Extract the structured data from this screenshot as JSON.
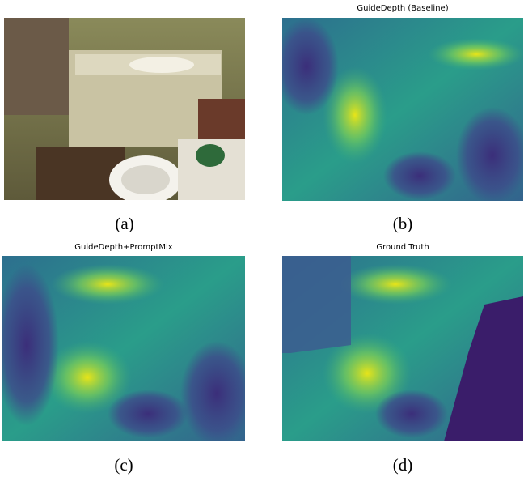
{
  "panels": [
    {
      "caption": "(a)"
    },
    {
      "title": "GuideDepth (Baseline)",
      "caption": "(b)"
    },
    {
      "title": "GuideDepth+PromptMix",
      "caption": "(c)"
    },
    {
      "title": "Ground Truth",
      "caption": "(d)"
    }
  ]
}
